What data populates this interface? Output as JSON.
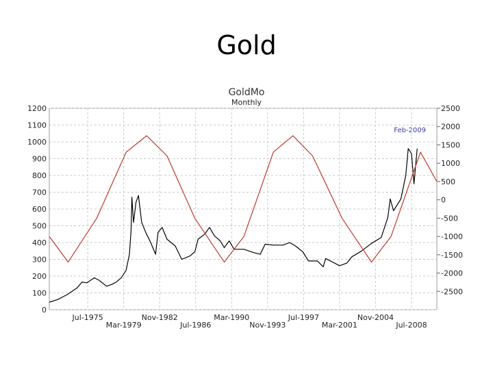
{
  "slide_title": "Gold",
  "chart_data": {
    "type": "line",
    "title": "GoldMo",
    "subtitle": "Monthly",
    "annotation": "Feb-2009",
    "grid": true,
    "x_range": [
      "1971-08",
      "2011-02"
    ],
    "x_tick_labels": [
      "Jul-1975",
      "Mar-1979",
      "Nov-1982",
      "Jul-1986",
      "Mar-1990",
      "Nov-1993",
      "Jul-1997",
      "Mar-2001",
      "Nov-2004",
      "Jul-2008"
    ],
    "x_tick_dates": [
      "1975-07",
      "1979-03",
      "1982-11",
      "1986-07",
      "1990-03",
      "1993-11",
      "1997-07",
      "2001-03",
      "2004-11",
      "2008-07"
    ],
    "y_left": {
      "range": [
        0,
        1200
      ],
      "tick_labels": [
        "0",
        "100",
        "200",
        "300",
        "400",
        "500",
        "600",
        "700",
        "800",
        "900",
        "1000",
        "1100",
        "1200"
      ]
    },
    "y_right": {
      "range": [
        -3000,
        2500
      ],
      "tick_labels": [
        "2500",
        "2000",
        "1500",
        "1000",
        "500",
        "0",
        "-500",
        "-1000",
        "-1500",
        "-2000",
        "-2500"
      ]
    },
    "series": [
      {
        "axis": "left",
        "color": "#000000",
        "points": [
          [
            "1971-08",
            45
          ],
          [
            "1972-06",
            60
          ],
          [
            "1973-06",
            90
          ],
          [
            "1974-06",
            130
          ],
          [
            "1974-12",
            165
          ],
          [
            "1975-06",
            160
          ],
          [
            "1976-03",
            190
          ],
          [
            "1976-09",
            175
          ],
          [
            "1977-06",
            140
          ],
          [
            "1977-12",
            150
          ],
          [
            "1978-06",
            165
          ],
          [
            "1978-12",
            190
          ],
          [
            "1979-06",
            235
          ],
          [
            "1979-10",
            330
          ],
          [
            "1979-12",
            470
          ],
          [
            "1980-01",
            670
          ],
          [
            "1980-03",
            520
          ],
          [
            "1980-06",
            640
          ],
          [
            "1980-09",
            680
          ],
          [
            "1981-01",
            520
          ],
          [
            "1981-06",
            460
          ],
          [
            "1981-12",
            400
          ],
          [
            "1982-06",
            330
          ],
          [
            "1982-09",
            460
          ],
          [
            "1983-02",
            490
          ],
          [
            "1983-08",
            420
          ],
          [
            "1984-06",
            380
          ],
          [
            "1985-02",
            300
          ],
          [
            "1985-12",
            320
          ],
          [
            "1986-06",
            345
          ],
          [
            "1986-10",
            420
          ],
          [
            "1987-06",
            450
          ],
          [
            "1987-12",
            490
          ],
          [
            "1988-06",
            440
          ],
          [
            "1989-01",
            410
          ],
          [
            "1989-06",
            370
          ],
          [
            "1989-12",
            410
          ],
          [
            "1990-06",
            360
          ],
          [
            "1991-06",
            360
          ],
          [
            "1992-06",
            340
          ],
          [
            "1993-02",
            330
          ],
          [
            "1993-08",
            390
          ],
          [
            "1994-06",
            385
          ],
          [
            "1995-06",
            385
          ],
          [
            "1996-02",
            400
          ],
          [
            "1996-09",
            380
          ],
          [
            "1997-06",
            345
          ],
          [
            "1998-01",
            290
          ],
          [
            "1998-12",
            290
          ],
          [
            "1999-07",
            255
          ],
          [
            "1999-10",
            305
          ],
          [
            "2000-06",
            285
          ],
          [
            "2001-03",
            262
          ],
          [
            "2001-12",
            278
          ],
          [
            "2002-06",
            315
          ],
          [
            "2003-06",
            350
          ],
          [
            "2004-06",
            395
          ],
          [
            "2005-06",
            430
          ],
          [
            "2006-02",
            550
          ],
          [
            "2006-05",
            660
          ],
          [
            "2006-09",
            590
          ],
          [
            "2007-06",
            660
          ],
          [
            "2007-12",
            800
          ],
          [
            "2008-03",
            960
          ],
          [
            "2008-07",
            930
          ],
          [
            "2008-10",
            750
          ],
          [
            "2009-02",
            960
          ]
        ]
      },
      {
        "axis": "right",
        "color": "#c0392b",
        "points": [
          [
            "1971-08",
            -1000
          ],
          [
            "1973-07",
            -1700
          ],
          [
            "1976-06",
            -500
          ],
          [
            "1979-06",
            1300
          ],
          [
            "1981-07",
            1750
          ],
          [
            "1983-08",
            1200
          ],
          [
            "1986-06",
            -500
          ],
          [
            "1989-06",
            -1700
          ],
          [
            "1991-06",
            -1000
          ],
          [
            "1994-06",
            1300
          ],
          [
            "1996-06",
            1750
          ],
          [
            "1998-06",
            1200
          ],
          [
            "2001-06",
            -500
          ],
          [
            "2004-06",
            -1700
          ],
          [
            "2006-06",
            -1000
          ],
          [
            "2009-06",
            1300
          ],
          [
            "2011-02",
            500
          ]
        ]
      }
    ]
  }
}
